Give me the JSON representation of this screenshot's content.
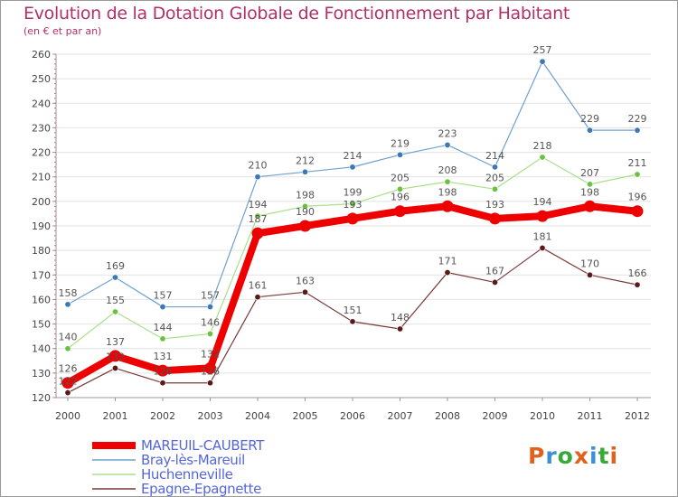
{
  "title": "Evolution de la Dotation Globale de Fonctionnement par Habitant",
  "subtitle": "(en € et par an)",
  "logo": {
    "text": "Proxiti",
    "colors": [
      "#e0621c",
      "#3a8fd8",
      "#38a838",
      "#e0621c",
      "#3a8fd8",
      "#38a838",
      "#e0621c"
    ]
  },
  "chart_data": {
    "type": "line",
    "title": "Evolution de la Dotation Globale de Fonctionnement par Habitant",
    "ylabel": "(en € et par an)",
    "xlabel": "",
    "categories": [
      "2000",
      "2001",
      "2002",
      "2003",
      "2004",
      "2005",
      "2006",
      "2007",
      "2008",
      "2009",
      "2010",
      "2011",
      "2012"
    ],
    "ylim": [
      120,
      260
    ],
    "yticks": [
      120,
      130,
      140,
      150,
      160,
      170,
      180,
      190,
      200,
      210,
      220,
      230,
      240,
      250,
      260
    ],
    "grid": "horizontal",
    "series": [
      {
        "name": "Bray-lès-Mareuil",
        "color": "#6fa0d0",
        "marker": "#3a78b8",
        "values": [
          158,
          169,
          157,
          157,
          210,
          212,
          214,
          219,
          223,
          214,
          257,
          229,
          229
        ]
      },
      {
        "name": "Huchenneville",
        "color": "#a8e08a",
        "marker": "#6cc040",
        "values": [
          140,
          155,
          144,
          146,
          194,
          198,
          199,
          205,
          208,
          205,
          218,
          207,
          211
        ]
      },
      {
        "name": "Epagne-Epagnette",
        "color": "#7a3a3a",
        "marker": "#5a1a1a",
        "values": [
          122,
          132,
          126,
          126,
          161,
          163,
          151,
          148,
          171,
          167,
          181,
          170,
          166
        ]
      },
      {
        "name": "MAREUIL-CAUBERT",
        "color": "#ee0000",
        "marker": "#ee0000",
        "thick": true,
        "values": [
          126,
          137,
          131,
          132,
          187,
          190,
          193,
          196,
          198,
          193,
          194,
          198,
          196
        ]
      }
    ],
    "legend": [
      "MAREUIL-CAUBERT",
      "Bray-lès-Mareuil",
      "Huchenneville",
      "Epagne-Epagnette"
    ],
    "legend_position": "bottom-left"
  }
}
